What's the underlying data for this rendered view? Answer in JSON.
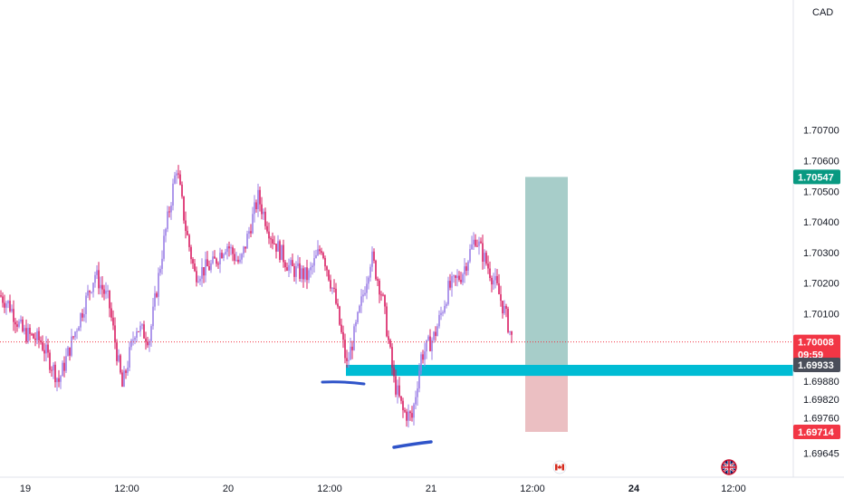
{
  "chart_data": {
    "type": "candlestick",
    "title": "",
    "currency": "CAD",
    "y_axis": {
      "ticks": [
        "1.70700",
        "1.70600",
        "1.70500",
        "1.70400",
        "1.70300",
        "1.70200",
        "1.70100",
        "1.69880",
        "1.69820",
        "1.69760",
        "1.69645"
      ],
      "ylim": [
        1.6964,
        1.7077
      ]
    },
    "x_axis": {
      "ticks": [
        "19",
        "12:00",
        "20",
        "12:00",
        "21",
        "12:00",
        "24",
        "12:00"
      ]
    },
    "price_tags": [
      {
        "label": "1.70547",
        "color": "#089981",
        "value": 1.70547
      },
      {
        "label": "1.70008",
        "sublabel": "09:59",
        "color": "#f23645",
        "value": 1.70008
      },
      {
        "label": "1.69933",
        "color": "#4a4e5a",
        "value": 1.69933
      },
      {
        "label": "1.69714",
        "color": "#f23645",
        "value": 1.69714
      }
    ],
    "current_price": 1.70008,
    "support_zone": {
      "low": 1.69897,
      "high": 1.69933,
      "color": "#00bcd4"
    },
    "position": {
      "entry": 1.69933,
      "target": 1.70547,
      "stop": 1.69714,
      "profit_color": "#a7cdc9",
      "loss_color": "#ebbfc2"
    },
    "event_markers": [
      {
        "name": "canada-flag-icon"
      },
      {
        "name": "uk-flag-icon"
      }
    ],
    "candle_colors": {
      "up": "#9b7ee6",
      "down": "#d81b60"
    },
    "annotations": [
      {
        "name": "hand-drawn-low-mark-1",
        "color": "#2f54c9"
      },
      {
        "name": "hand-drawn-low-mark-2",
        "color": "#2f54c9"
      }
    ]
  }
}
